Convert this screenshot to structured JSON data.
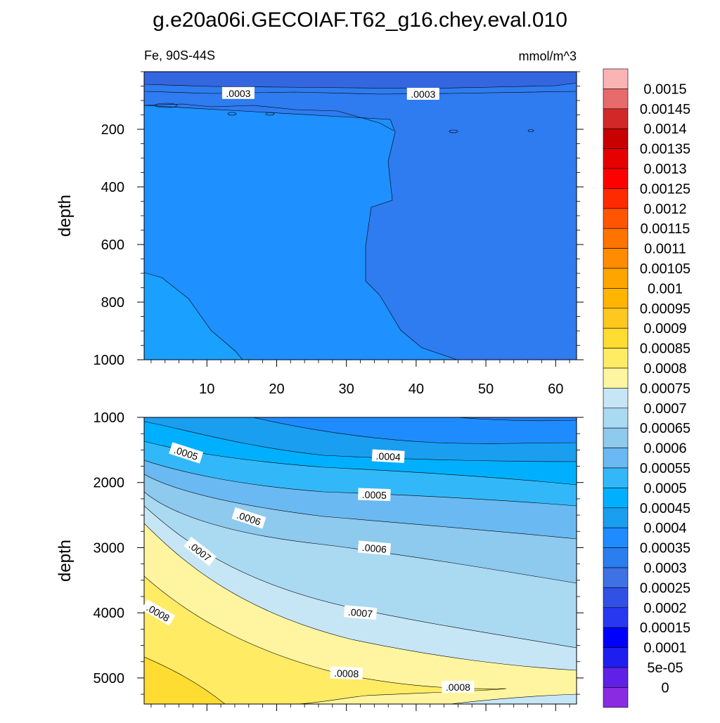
{
  "title": "g.e20a06i.GECOIAF.T62_g16.chey.eval.010",
  "subtitle_left": "Fe, 90S-44S",
  "subtitle_right": "mmol/m^3",
  "chart_data": [
    {
      "type": "heatmap",
      "panel": "upper",
      "ylabel": "depth",
      "ylim": [
        1000,
        0
      ],
      "yticks": [
        200,
        400,
        600,
        800,
        1000
      ],
      "xlim": [
        1,
        63
      ],
      "xticks": [
        10,
        20,
        30,
        40,
        50,
        60
      ],
      "regions": [
        {
          "level": "0.0002-0.00025",
          "color": "#3466e0",
          "desc": "top layer 0-70m"
        },
        {
          "level": "0.00025-0.0003",
          "color": "#2f7bf0",
          "desc": "x>35 below 150m"
        },
        {
          "level": "0.0003-0.00035",
          "color": "#1e90ff",
          "desc": "x<35 below 150m"
        },
        {
          "level": "0.00035-0.0004",
          "color": "#1aa0ff",
          "desc": "bottom-left corner"
        }
      ],
      "contour_labels": [
        {
          "text": ".0003",
          "x": 14.5,
          "y": 75
        },
        {
          "text": ".0003",
          "x": 41,
          "y": 78
        }
      ]
    },
    {
      "type": "heatmap",
      "panel": "lower",
      "ylabel": "depth",
      "ylim": [
        5400,
        1000
      ],
      "yticks": [
        1000,
        2000,
        3000,
        4000,
        5000
      ],
      "xlim": [
        1,
        63
      ],
      "contour_levels": [
        0.0004,
        0.00045,
        0.0005,
        0.00055,
        0.0006,
        0.00065,
        0.0007,
        0.00075,
        0.0008,
        0.00085
      ],
      "contour_labels": [
        {
          "text": ".0005",
          "x": 7,
          "y": 1550
        },
        {
          "text": ".0004",
          "x": 36,
          "y": 1600
        },
        {
          "text": ".0005",
          "x": 34,
          "y": 2190
        },
        {
          "text": ".0006",
          "x": 16,
          "y": 2550
        },
        {
          "text": ".0006",
          "x": 34,
          "y": 3010
        },
        {
          "text": ".0007",
          "x": 9,
          "y": 3060
        },
        {
          "text": ".0007",
          "x": 32,
          "y": 4000
        },
        {
          "text": ".0008",
          "x": 3,
          "y": 4000
        },
        {
          "text": ".0008",
          "x": 30,
          "y": 4930
        },
        {
          "text": ".0008",
          "x": 46,
          "y": 5140
        }
      ]
    }
  ],
  "colorbar": {
    "labels": [
      "0.0015",
      "0.00145",
      "0.0014",
      "0.00135",
      "0.0013",
      "0.00125",
      "0.0012",
      "0.00115",
      "0.0011",
      "0.00105",
      "0.001",
      "0.00095",
      "0.0009",
      "0.00085",
      "0.0008",
      "0.00075",
      "0.0007",
      "0.00065",
      "0.0006",
      "0.00055",
      "0.0005",
      "0.00045",
      "0.0004",
      "0.00035",
      "0.0003",
      "0.00025",
      "0.0002",
      "0.00015",
      "0.0001",
      "5e-05",
      "0"
    ],
    "colors": [
      "#fbb4b4",
      "#e86b6b",
      "#d22828",
      "#c80000",
      "#e60000",
      "#ff0000",
      "#ff2a00",
      "#ff5500",
      "#ff7300",
      "#ff8c00",
      "#ffa500",
      "#ffb400",
      "#ffc81e",
      "#ffdc32",
      "#ffeb64",
      "#fff5a0",
      "#c6e6f6",
      "#aad9f2",
      "#8ec9ee",
      "#6ab9f2",
      "#32b8f8",
      "#00b0ff",
      "#1a9ef0",
      "#1e8cff",
      "#2b7ef0",
      "#3e70e6",
      "#3050e6",
      "#2838f0",
      "#0000ff",
      "#1e1ef0",
      "#6020e6",
      "#8a2be2"
    ]
  }
}
